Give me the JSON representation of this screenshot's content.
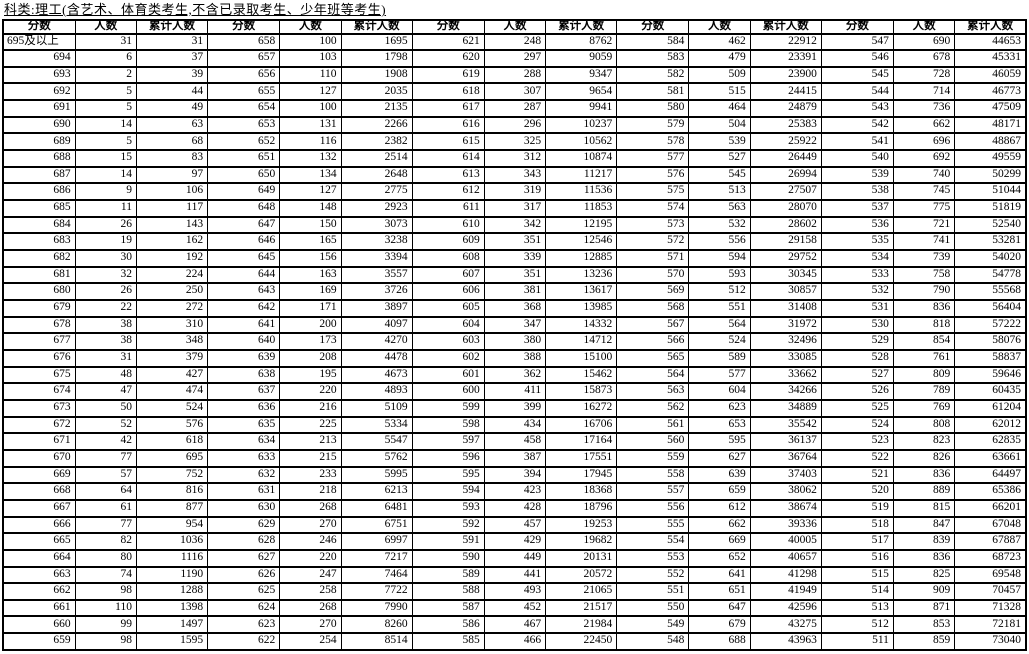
{
  "title": "科类:理工(含艺术、体育类考生,不含已录取考生、少年班等考生)",
  "table": {
    "column_headers": [
      "分数",
      "人数",
      "累计人数"
    ],
    "group_count": 5,
    "groups": [
      {
        "rows": [
          [
            "695及以上",
            31,
            31
          ],
          [
            694,
            6,
            37
          ],
          [
            693,
            2,
            39
          ],
          [
            692,
            5,
            44
          ],
          [
            691,
            5,
            49
          ],
          [
            690,
            14,
            63
          ],
          [
            689,
            5,
            68
          ],
          [
            688,
            15,
            83
          ],
          [
            687,
            14,
            97
          ],
          [
            686,
            9,
            106
          ],
          [
            685,
            11,
            117
          ],
          [
            684,
            26,
            143
          ],
          [
            683,
            19,
            162
          ],
          [
            682,
            30,
            192
          ],
          [
            681,
            32,
            224
          ],
          [
            680,
            26,
            250
          ],
          [
            679,
            22,
            272
          ],
          [
            678,
            38,
            310
          ],
          [
            677,
            38,
            348
          ],
          [
            676,
            31,
            379
          ],
          [
            675,
            48,
            427
          ],
          [
            674,
            47,
            474
          ],
          [
            673,
            50,
            524
          ],
          [
            672,
            52,
            576
          ],
          [
            671,
            42,
            618
          ],
          [
            670,
            77,
            695
          ],
          [
            669,
            57,
            752
          ],
          [
            668,
            64,
            816
          ],
          [
            667,
            61,
            877
          ],
          [
            666,
            77,
            954
          ],
          [
            665,
            82,
            1036
          ],
          [
            664,
            80,
            1116
          ],
          [
            663,
            74,
            1190
          ],
          [
            662,
            98,
            1288
          ],
          [
            661,
            110,
            1398
          ],
          [
            660,
            99,
            1497
          ],
          [
            659,
            98,
            1595
          ]
        ]
      },
      {
        "rows": [
          [
            658,
            100,
            1695
          ],
          [
            657,
            103,
            1798
          ],
          [
            656,
            110,
            1908
          ],
          [
            655,
            127,
            2035
          ],
          [
            654,
            100,
            2135
          ],
          [
            653,
            131,
            2266
          ],
          [
            652,
            116,
            2382
          ],
          [
            651,
            132,
            2514
          ],
          [
            650,
            134,
            2648
          ],
          [
            649,
            127,
            2775
          ],
          [
            648,
            148,
            2923
          ],
          [
            647,
            150,
            3073
          ],
          [
            646,
            165,
            3238
          ],
          [
            645,
            156,
            3394
          ],
          [
            644,
            163,
            3557
          ],
          [
            643,
            169,
            3726
          ],
          [
            642,
            171,
            3897
          ],
          [
            641,
            200,
            4097
          ],
          [
            640,
            173,
            4270
          ],
          [
            639,
            208,
            4478
          ],
          [
            638,
            195,
            4673
          ],
          [
            637,
            220,
            4893
          ],
          [
            636,
            216,
            5109
          ],
          [
            635,
            225,
            5334
          ],
          [
            634,
            213,
            5547
          ],
          [
            633,
            215,
            5762
          ],
          [
            632,
            233,
            5995
          ],
          [
            631,
            218,
            6213
          ],
          [
            630,
            268,
            6481
          ],
          [
            629,
            270,
            6751
          ],
          [
            628,
            246,
            6997
          ],
          [
            627,
            220,
            7217
          ],
          [
            626,
            247,
            7464
          ],
          [
            625,
            258,
            7722
          ],
          [
            624,
            268,
            7990
          ],
          [
            623,
            270,
            8260
          ],
          [
            622,
            254,
            8514
          ]
        ]
      },
      {
        "rows": [
          [
            621,
            248,
            8762
          ],
          [
            620,
            297,
            9059
          ],
          [
            619,
            288,
            9347
          ],
          [
            618,
            307,
            9654
          ],
          [
            617,
            287,
            9941
          ],
          [
            616,
            296,
            10237
          ],
          [
            615,
            325,
            10562
          ],
          [
            614,
            312,
            10874
          ],
          [
            613,
            343,
            11217
          ],
          [
            612,
            319,
            11536
          ],
          [
            611,
            317,
            11853
          ],
          [
            610,
            342,
            12195
          ],
          [
            609,
            351,
            12546
          ],
          [
            608,
            339,
            12885
          ],
          [
            607,
            351,
            13236
          ],
          [
            606,
            381,
            13617
          ],
          [
            605,
            368,
            13985
          ],
          [
            604,
            347,
            14332
          ],
          [
            603,
            380,
            14712
          ],
          [
            602,
            388,
            15100
          ],
          [
            601,
            362,
            15462
          ],
          [
            600,
            411,
            15873
          ],
          [
            599,
            399,
            16272
          ],
          [
            598,
            434,
            16706
          ],
          [
            597,
            458,
            17164
          ],
          [
            596,
            387,
            17551
          ],
          [
            595,
            394,
            17945
          ],
          [
            594,
            423,
            18368
          ],
          [
            593,
            428,
            18796
          ],
          [
            592,
            457,
            19253
          ],
          [
            591,
            429,
            19682
          ],
          [
            590,
            449,
            20131
          ],
          [
            589,
            441,
            20572
          ],
          [
            588,
            493,
            21065
          ],
          [
            587,
            452,
            21517
          ],
          [
            586,
            467,
            21984
          ],
          [
            585,
            466,
            22450
          ]
        ]
      },
      {
        "rows": [
          [
            584,
            462,
            22912
          ],
          [
            583,
            479,
            23391
          ],
          [
            582,
            509,
            23900
          ],
          [
            581,
            515,
            24415
          ],
          [
            580,
            464,
            24879
          ],
          [
            579,
            504,
            25383
          ],
          [
            578,
            539,
            25922
          ],
          [
            577,
            527,
            26449
          ],
          [
            576,
            545,
            26994
          ],
          [
            575,
            513,
            27507
          ],
          [
            574,
            563,
            28070
          ],
          [
            573,
            532,
            28602
          ],
          [
            572,
            556,
            29158
          ],
          [
            571,
            594,
            29752
          ],
          [
            570,
            593,
            30345
          ],
          [
            569,
            512,
            30857
          ],
          [
            568,
            551,
            31408
          ],
          [
            567,
            564,
            31972
          ],
          [
            566,
            524,
            32496
          ],
          [
            565,
            589,
            33085
          ],
          [
            564,
            577,
            33662
          ],
          [
            563,
            604,
            34266
          ],
          [
            562,
            623,
            34889
          ],
          [
            561,
            653,
            35542
          ],
          [
            560,
            595,
            36137
          ],
          [
            559,
            627,
            36764
          ],
          [
            558,
            639,
            37403
          ],
          [
            557,
            659,
            38062
          ],
          [
            556,
            612,
            38674
          ],
          [
            555,
            662,
            39336
          ],
          [
            554,
            669,
            40005
          ],
          [
            553,
            652,
            40657
          ],
          [
            552,
            641,
            41298
          ],
          [
            551,
            651,
            41949
          ],
          [
            550,
            647,
            42596
          ],
          [
            549,
            679,
            43275
          ],
          [
            548,
            688,
            43963
          ]
        ]
      },
      {
        "rows": [
          [
            547,
            690,
            44653
          ],
          [
            546,
            678,
            45331
          ],
          [
            545,
            728,
            46059
          ],
          [
            544,
            714,
            46773
          ],
          [
            543,
            736,
            47509
          ],
          [
            542,
            662,
            48171
          ],
          [
            541,
            696,
            48867
          ],
          [
            540,
            692,
            49559
          ],
          [
            539,
            740,
            50299
          ],
          [
            538,
            745,
            51044
          ],
          [
            537,
            775,
            51819
          ],
          [
            536,
            721,
            52540
          ],
          [
            535,
            741,
            53281
          ],
          [
            534,
            739,
            54020
          ],
          [
            533,
            758,
            54778
          ],
          [
            532,
            790,
            55568
          ],
          [
            531,
            836,
            56404
          ],
          [
            530,
            818,
            57222
          ],
          [
            529,
            854,
            58076
          ],
          [
            528,
            761,
            58837
          ],
          [
            527,
            809,
            59646
          ],
          [
            526,
            789,
            60435
          ],
          [
            525,
            769,
            61204
          ],
          [
            524,
            808,
            62012
          ],
          [
            523,
            823,
            62835
          ],
          [
            522,
            826,
            63661
          ],
          [
            521,
            836,
            64497
          ],
          [
            520,
            889,
            65386
          ],
          [
            519,
            815,
            66201
          ],
          [
            518,
            847,
            67048
          ],
          [
            517,
            839,
            67887
          ],
          [
            516,
            836,
            68723
          ],
          [
            515,
            825,
            69548
          ],
          [
            514,
            909,
            70457
          ],
          [
            513,
            871,
            71328
          ],
          [
            512,
            853,
            72181
          ],
          [
            511,
            859,
            73040
          ]
        ]
      }
    ]
  }
}
